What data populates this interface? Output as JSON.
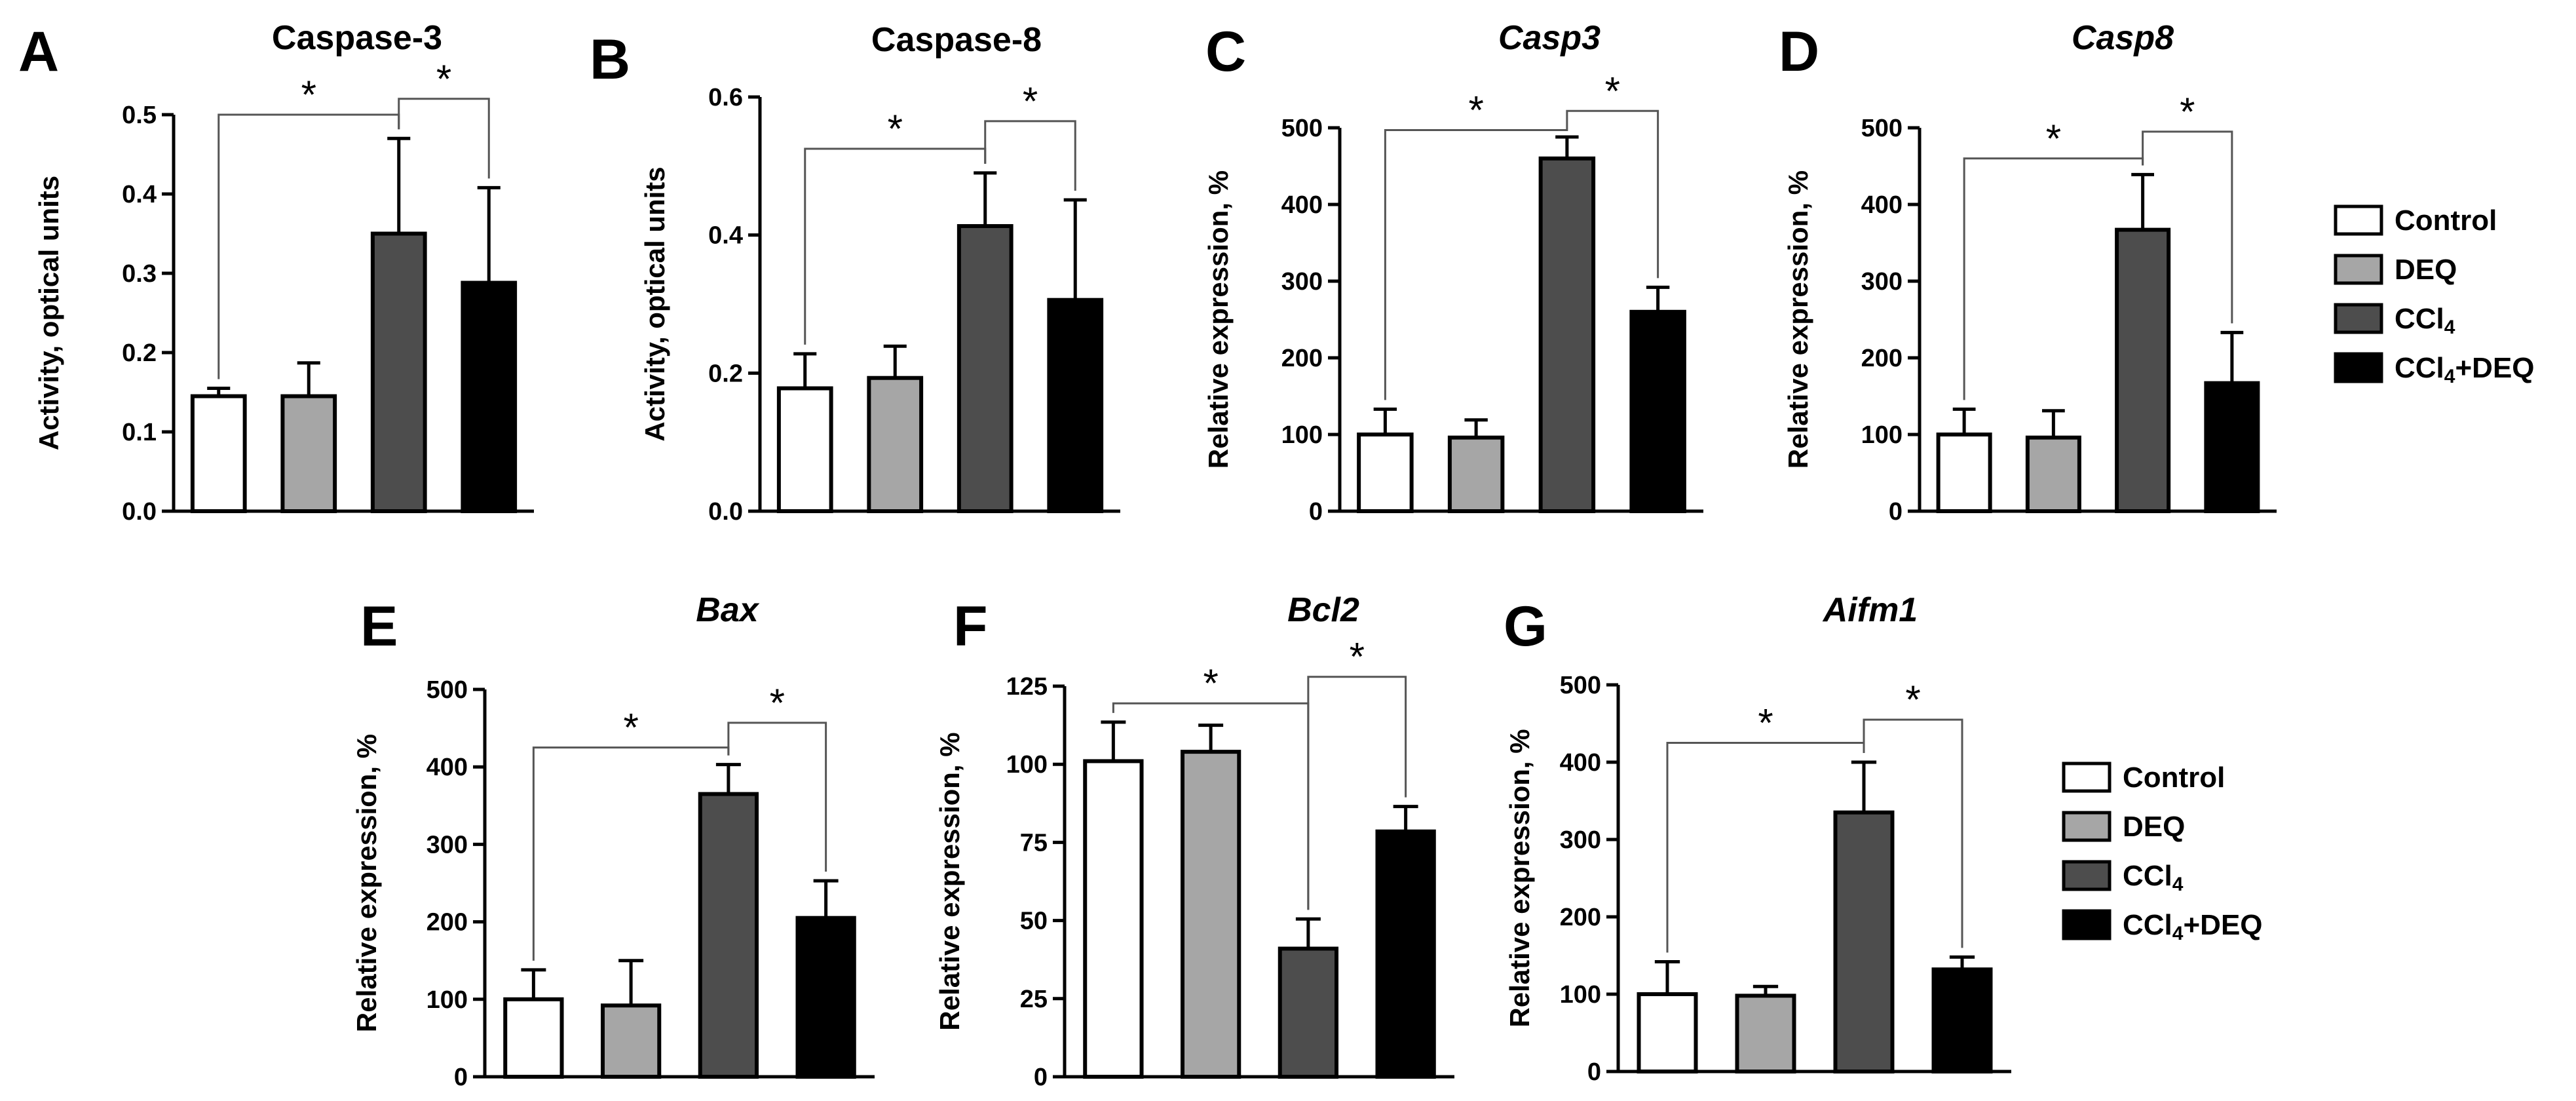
{
  "legend": {
    "groups": [
      "Control",
      "DEQ",
      "CCl4",
      "CCl4+DEQ"
    ],
    "labels": [
      {
        "main": "Control",
        "sub": "",
        "tail": ""
      },
      {
        "main": "DEQ",
        "sub": "",
        "tail": ""
      },
      {
        "main": "CCl",
        "sub": "4",
        "tail": ""
      },
      {
        "main": "CCl",
        "sub": "4",
        "tail": "+DEQ"
      }
    ],
    "colors": [
      "#ffffff",
      "#a6a6a6",
      "#4d4d4d",
      "#000000"
    ]
  },
  "chart_data": [
    {
      "panel": "A",
      "type": "bar",
      "title": "Caspase-3",
      "title_italic": false,
      "ylabel": "Activity, optical units",
      "categories": [
        "Control",
        "DEQ",
        "CCl4",
        "CCl4+DEQ"
      ],
      "values": [
        0.145,
        0.145,
        0.35,
        0.288
      ],
      "errors": [
        0.01,
        0.042,
        0.12,
        0.12
      ],
      "ylim": [
        0,
        0.5
      ],
      "yticks": [
        0,
        0.1,
        0.2,
        0.3,
        0.4,
        0.5
      ],
      "ytick_labels": [
        "0.0",
        "0.1",
        "0.2",
        "0.3",
        "0.4",
        "0.5"
      ],
      "significance": [
        {
          "from": 0,
          "to": 2,
          "level": 0.5,
          "label": "*"
        },
        {
          "from": 2,
          "to": 3,
          "level": 0.52,
          "label": "*"
        }
      ]
    },
    {
      "panel": "B",
      "type": "bar",
      "title": "Caspase-8",
      "title_italic": false,
      "ylabel": "Activity, optical units",
      "categories": [
        "Control",
        "DEQ",
        "CCl4",
        "CCl4+DEQ"
      ],
      "values": [
        0.178,
        0.193,
        0.413,
        0.306
      ],
      "errors": [
        0.05,
        0.046,
        0.077,
        0.145
      ],
      "ylim": [
        0,
        0.6
      ],
      "yticks": [
        0,
        0.2,
        0.4,
        0.6
      ],
      "ytick_labels": [
        "0.0",
        "0.2",
        "0.4",
        "0.6"
      ],
      "significance": [
        {
          "from": 0,
          "to": 2,
          "level": 0.525,
          "label": "*"
        },
        {
          "from": 2,
          "to": 3,
          "level": 0.565,
          "label": "*"
        }
      ]
    },
    {
      "panel": "C",
      "type": "bar",
      "title": "Casp3",
      "title_italic": true,
      "ylabel": "Relative expression, %",
      "categories": [
        "Control",
        "DEQ",
        "CCl4",
        "CCl4+DEQ"
      ],
      "values": [
        100,
        96,
        460,
        260
      ],
      "errors": [
        33,
        23,
        28,
        32
      ],
      "ylim": [
        0,
        500
      ],
      "yticks": [
        0,
        100,
        200,
        300,
        400,
        500
      ],
      "ytick_labels": [
        "0",
        "100",
        "200",
        "300",
        "400",
        "500"
      ],
      "significance": [
        {
          "from": 0,
          "to": 2,
          "level": 497,
          "label": "*"
        },
        {
          "from": 2,
          "to": 3,
          "level": 522,
          "label": "*"
        }
      ]
    },
    {
      "panel": "D",
      "type": "bar",
      "title": "Casp8",
      "title_italic": true,
      "ylabel": "Relative expression, %",
      "categories": [
        "Control",
        "DEQ",
        "CCl4",
        "CCl4+DEQ"
      ],
      "values": [
        100,
        96,
        367,
        167
      ],
      "errors": [
        33,
        35,
        72,
        66
      ],
      "ylim": [
        0,
        500
      ],
      "yticks": [
        0,
        100,
        200,
        300,
        400,
        500
      ],
      "ytick_labels": [
        "0",
        "100",
        "200",
        "300",
        "400",
        "500"
      ],
      "significance": [
        {
          "from": 0,
          "to": 2,
          "level": 460,
          "label": "*"
        },
        {
          "from": 2,
          "to": 3,
          "level": 495,
          "label": "*"
        }
      ]
    },
    {
      "panel": "E",
      "type": "bar",
      "title": "Bax",
      "title_italic": true,
      "ylabel": "Relative expression, %",
      "categories": [
        "Control",
        "DEQ",
        "CCl4",
        "CCl4+DEQ"
      ],
      "values": [
        100,
        92,
        365,
        205
      ],
      "errors": [
        38,
        58,
        38,
        48
      ],
      "ylim": [
        0,
        500
      ],
      "yticks": [
        0,
        100,
        200,
        300,
        400,
        500
      ],
      "ytick_labels": [
        "0",
        "100",
        "200",
        "300",
        "400",
        "500"
      ],
      "significance": [
        {
          "from": 0,
          "to": 2,
          "level": 425,
          "label": "*"
        },
        {
          "from": 2,
          "to": 3,
          "level": 457,
          "label": "*"
        }
      ]
    },
    {
      "panel": "F",
      "type": "bar",
      "title": "Bcl2",
      "title_italic": true,
      "ylabel": "Relative expression, %",
      "categories": [
        "Control",
        "DEQ",
        "CCl4",
        "CCl4+DEQ"
      ],
      "values": [
        101,
        104,
        41,
        78.5
      ],
      "errors": [
        12.5,
        8.5,
        9.5,
        8
      ],
      "ylim": [
        0,
        125
      ],
      "yticks": [
        0,
        25,
        50,
        75,
        100,
        125
      ],
      "ytick_labels": [
        "0",
        "25",
        "50",
        "75",
        "100",
        "125"
      ],
      "significance": [
        {
          "from": 0,
          "to": 2,
          "level": 119.5,
          "label": "*"
        },
        {
          "from": 2,
          "to": 3,
          "level": 128,
          "label": "*"
        }
      ]
    },
    {
      "panel": "G",
      "type": "bar",
      "title": "Aifm1",
      "title_italic": true,
      "ylabel": "Relative expression, %",
      "categories": [
        "Control",
        "DEQ",
        "CCl4",
        "CCl4+DEQ"
      ],
      "values": [
        100,
        98,
        335,
        132
      ],
      "errors": [
        42,
        12,
        65,
        16
      ],
      "ylim": [
        0,
        500
      ],
      "yticks": [
        0,
        100,
        200,
        300,
        400,
        500
      ],
      "ytick_labels": [
        "0",
        "100",
        "200",
        "300",
        "400",
        "500"
      ],
      "significance": [
        {
          "from": 0,
          "to": 2,
          "level": 425,
          "label": "*"
        },
        {
          "from": 2,
          "to": 3,
          "level": 455,
          "label": "*"
        }
      ]
    }
  ]
}
